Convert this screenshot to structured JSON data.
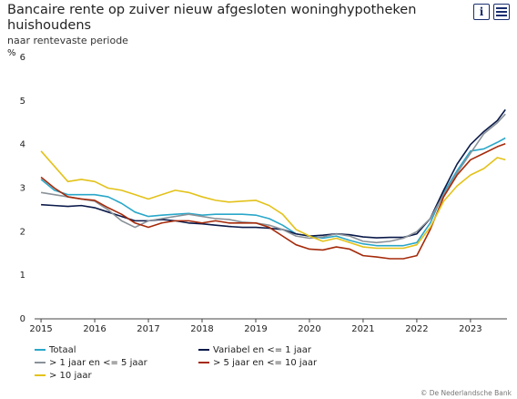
{
  "chart_data": {
    "type": "line",
    "title": "Bancaire rente op zuiver nieuw afgesloten woninghypotheken huishoudens",
    "subtitle": "naar rentevaste periode",
    "y_unit": "%",
    "source": "© De Nederlandsche Bank",
    "x": [
      2015,
      2015.25,
      2015.5,
      2015.75,
      2016,
      2016.25,
      2016.5,
      2016.75,
      2017,
      2017.25,
      2017.5,
      2017.75,
      2018,
      2018.25,
      2018.5,
      2018.75,
      2019,
      2019.25,
      2019.5,
      2019.75,
      2020,
      2020.25,
      2020.5,
      2020.75,
      2021,
      2021.25,
      2021.5,
      2021.75,
      2022,
      2022.25,
      2022.5,
      2022.75,
      2023,
      2023.25,
      2023.5,
      2023.65
    ],
    "xlim": [
      2014.88,
      2023.68
    ],
    "xticks": [
      2015,
      2016,
      2017,
      2018,
      2019,
      2020,
      2021,
      2022,
      2023
    ],
    "ylim": [
      0,
      6
    ],
    "yticks": [
      0,
      1,
      2,
      3,
      4,
      5,
      6
    ],
    "grid": false,
    "series": [
      {
        "name": "Totaal",
        "color": "#2aa7c9",
        "values": [
          3.2,
          2.95,
          2.85,
          2.85,
          2.85,
          2.8,
          2.65,
          2.45,
          2.35,
          2.38,
          2.4,
          2.42,
          2.38,
          2.4,
          2.4,
          2.4,
          2.38,
          2.3,
          2.15,
          1.95,
          1.9,
          1.85,
          1.9,
          1.8,
          1.72,
          1.68,
          1.68,
          1.68,
          1.75,
          2.2,
          2.9,
          3.4,
          3.85,
          3.9,
          4.05,
          4.15
        ]
      },
      {
        "name": "Variabel en <= 1 jaar",
        "color": "#0b1a4a",
        "values": [
          2.62,
          2.6,
          2.58,
          2.6,
          2.55,
          2.45,
          2.35,
          2.25,
          2.25,
          2.28,
          2.25,
          2.2,
          2.18,
          2.15,
          2.12,
          2.1,
          2.1,
          2.08,
          2.05,
          1.95,
          1.9,
          1.92,
          1.95,
          1.93,
          1.88,
          1.86,
          1.87,
          1.87,
          1.95,
          2.3,
          2.95,
          3.55,
          4.0,
          4.3,
          4.55,
          4.8
        ]
      },
      {
        "name": "> 1 jaar en <= 5 jaar",
        "color": "#8a9299",
        "values": [
          2.9,
          2.85,
          2.8,
          2.75,
          2.7,
          2.5,
          2.25,
          2.1,
          2.25,
          2.3,
          2.35,
          2.4,
          2.35,
          2.3,
          2.28,
          2.22,
          2.2,
          2.15,
          2.05,
          1.9,
          1.85,
          1.88,
          1.95,
          1.9,
          1.78,
          1.75,
          1.78,
          1.85,
          2.0,
          2.3,
          2.85,
          3.35,
          3.8,
          4.25,
          4.5,
          4.7
        ]
      },
      {
        "name": "> 5 jaar en <= 10 jaar",
        "color": "#a52a0a",
        "values": [
          3.25,
          3.0,
          2.8,
          2.75,
          2.72,
          2.55,
          2.4,
          2.2,
          2.1,
          2.2,
          2.25,
          2.25,
          2.2,
          2.25,
          2.2,
          2.2,
          2.2,
          2.1,
          1.9,
          1.7,
          1.6,
          1.58,
          1.65,
          1.6,
          1.45,
          1.42,
          1.38,
          1.38,
          1.45,
          2.05,
          2.8,
          3.3,
          3.65,
          3.8,
          3.95,
          4.02
        ]
      },
      {
        "name": "> 10 jaar",
        "color": "#e3c21a",
        "values": [
          3.85,
          3.5,
          3.15,
          3.2,
          3.15,
          3.0,
          2.95,
          2.85,
          2.75,
          2.85,
          2.95,
          2.9,
          2.8,
          2.72,
          2.68,
          2.7,
          2.72,
          2.6,
          2.4,
          2.05,
          1.9,
          1.78,
          1.85,
          1.75,
          1.65,
          1.62,
          1.62,
          1.62,
          1.7,
          2.1,
          2.7,
          3.05,
          3.3,
          3.45,
          3.7,
          3.65
        ]
      }
    ]
  }
}
